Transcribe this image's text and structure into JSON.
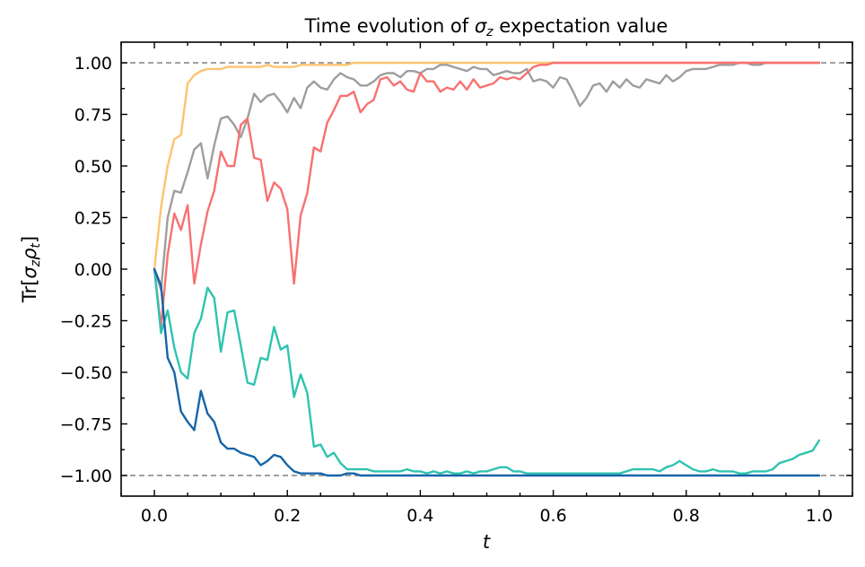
{
  "chart_data": {
    "type": "line",
    "title": "Time evolution of σ_z expectation value",
    "title_parts": {
      "prefix": "Time evolution of ",
      "symbol": "σ",
      "subscript": "z",
      "suffix": " expectation value"
    },
    "xlabel": "t",
    "ylabel": "Tr[σ_z ρ_t]",
    "ylabel_parts": {
      "a": "Tr[",
      "s1": "σ",
      "sub1": "z",
      "s2": "ρ",
      "sub2": "t",
      "b": "]"
    },
    "xlim": [
      -0.05,
      1.05
    ],
    "ylim": [
      -1.1,
      1.1
    ],
    "xticks": [
      0.0,
      0.2,
      0.4,
      0.6,
      0.8,
      1.0
    ],
    "xtick_labels": [
      "0.0",
      "0.2",
      "0.4",
      "0.6",
      "0.8",
      "1.0"
    ],
    "yticks": [
      1.0,
      0.75,
      0.5,
      0.25,
      0.0,
      -0.25,
      -0.5,
      -0.75,
      -1.0
    ],
    "ytick_labels": [
      "1.00",
      "0.75",
      "0.50",
      "0.25",
      "0.00",
      "−0.25",
      "−0.50",
      "−0.75",
      "−1.00"
    ],
    "reference_lines": [
      1.0,
      -1.0
    ],
    "reference_color": "#808080",
    "grid": false,
    "legend": false,
    "x": [
      0.0,
      0.01,
      0.02,
      0.03,
      0.04,
      0.05,
      0.06,
      0.07,
      0.08,
      0.09,
      0.1,
      0.11,
      0.12,
      0.13,
      0.14,
      0.15,
      0.16,
      0.17,
      0.18,
      0.19,
      0.2,
      0.21,
      0.22,
      0.23,
      0.24,
      0.25,
      0.26,
      0.27,
      0.28,
      0.29,
      0.3,
      0.31,
      0.32,
      0.33,
      0.34,
      0.35,
      0.36,
      0.37,
      0.38,
      0.39,
      0.4,
      0.41,
      0.42,
      0.43,
      0.44,
      0.45,
      0.46,
      0.47,
      0.48,
      0.49,
      0.5,
      0.51,
      0.52,
      0.53,
      0.54,
      0.55,
      0.56,
      0.57,
      0.58,
      0.59,
      0.6,
      0.61,
      0.62,
      0.63,
      0.64,
      0.65,
      0.66,
      0.67,
      0.68,
      0.69,
      0.7,
      0.71,
      0.72,
      0.73,
      0.74,
      0.75,
      0.76,
      0.77,
      0.78,
      0.79,
      0.8,
      0.81,
      0.82,
      0.83,
      0.84,
      0.85,
      0.86,
      0.87,
      0.88,
      0.89,
      0.9,
      0.91,
      0.92,
      0.93,
      0.94,
      0.95,
      0.96,
      0.97,
      0.98,
      0.99,
      1.0
    ],
    "series": [
      {
        "color": "#fdc46f",
        "values": [
          0.0,
          0.3,
          0.5,
          0.63,
          0.65,
          0.9,
          0.94,
          0.96,
          0.97,
          0.97,
          0.97,
          0.98,
          0.98,
          0.98,
          0.98,
          0.98,
          0.98,
          0.99,
          0.98,
          0.98,
          0.98,
          0.98,
          0.99,
          0.99,
          0.99,
          0.99,
          0.99,
          0.99,
          0.99,
          0.99,
          1.0,
          1.0,
          1.0,
          1.0,
          1.0,
          1.0,
          1.0,
          1.0,
          1.0,
          1.0,
          1.0,
          1.0,
          1.0,
          1.0,
          1.0,
          1.0,
          1.0,
          1.0,
          1.0,
          1.0,
          1.0,
          1.0,
          1.0,
          1.0,
          1.0,
          1.0,
          1.0,
          1.0,
          1.0,
          1.0,
          1.0,
          1.0,
          1.0,
          1.0,
          1.0,
          1.0,
          1.0,
          1.0,
          1.0,
          1.0,
          1.0,
          1.0,
          1.0,
          1.0,
          1.0,
          1.0,
          1.0,
          1.0,
          1.0,
          1.0,
          1.0,
          1.0,
          1.0,
          1.0,
          1.0,
          1.0,
          1.0,
          1.0,
          1.0,
          1.0,
          1.0,
          1.0,
          1.0,
          1.0,
          1.0,
          1.0,
          1.0,
          1.0,
          1.0,
          1.0,
          1.0
        ]
      },
      {
        "color": "#9e9e9e",
        "values": [
          0.0,
          -0.1,
          0.25,
          0.38,
          0.37,
          0.47,
          0.58,
          0.61,
          0.44,
          0.6,
          0.73,
          0.74,
          0.7,
          0.64,
          0.73,
          0.85,
          0.81,
          0.84,
          0.85,
          0.81,
          0.76,
          0.83,
          0.78,
          0.88,
          0.91,
          0.88,
          0.87,
          0.92,
          0.95,
          0.93,
          0.92,
          0.89,
          0.89,
          0.91,
          0.94,
          0.95,
          0.95,
          0.93,
          0.96,
          0.96,
          0.95,
          0.97,
          0.97,
          0.99,
          0.99,
          0.98,
          0.97,
          0.96,
          0.98,
          0.97,
          0.97,
          0.94,
          0.95,
          0.96,
          0.95,
          0.95,
          0.97,
          0.91,
          0.92,
          0.91,
          0.88,
          0.93,
          0.92,
          0.86,
          0.79,
          0.83,
          0.89,
          0.9,
          0.86,
          0.91,
          0.88,
          0.92,
          0.89,
          0.88,
          0.92,
          0.91,
          0.9,
          0.94,
          0.91,
          0.93,
          0.96,
          0.97,
          0.97,
          0.97,
          0.98,
          0.99,
          0.99,
          0.99,
          1.0,
          1.0,
          0.99,
          0.99,
          1.0,
          1.0,
          1.0,
          1.0,
          1.0,
          1.0,
          1.0,
          1.0,
          1.0
        ]
      },
      {
        "color": "#f87171",
        "values": [
          0.0,
          -0.28,
          0.07,
          0.27,
          0.19,
          0.31,
          -0.07,
          0.12,
          0.28,
          0.38,
          0.57,
          0.5,
          0.5,
          0.7,
          0.73,
          0.54,
          0.53,
          0.33,
          0.42,
          0.39,
          0.29,
          -0.07,
          0.26,
          0.37,
          0.59,
          0.57,
          0.71,
          0.77,
          0.84,
          0.84,
          0.86,
          0.76,
          0.8,
          0.82,
          0.92,
          0.93,
          0.89,
          0.91,
          0.87,
          0.86,
          0.95,
          0.91,
          0.91,
          0.86,
          0.88,
          0.87,
          0.91,
          0.87,
          0.92,
          0.88,
          0.89,
          0.9,
          0.93,
          0.92,
          0.93,
          0.92,
          0.95,
          0.98,
          0.99,
          0.99,
          1.0,
          1.0,
          1.0,
          1.0,
          1.0,
          1.0,
          1.0,
          1.0,
          1.0,
          1.0,
          1.0,
          1.0,
          1.0,
          1.0,
          1.0,
          1.0,
          1.0,
          1.0,
          1.0,
          1.0,
          1.0,
          1.0,
          1.0,
          1.0,
          1.0,
          1.0,
          1.0,
          1.0,
          1.0,
          1.0,
          1.0,
          1.0,
          1.0,
          1.0,
          1.0,
          1.0,
          1.0,
          1.0,
          1.0,
          1.0,
          1.0
        ]
      },
      {
        "color": "#2ec4b0",
        "values": [
          0.0,
          -0.31,
          -0.2,
          -0.38,
          -0.5,
          -0.53,
          -0.31,
          -0.24,
          -0.09,
          -0.14,
          -0.4,
          -0.21,
          -0.2,
          -0.37,
          -0.55,
          -0.56,
          -0.43,
          -0.44,
          -0.28,
          -0.39,
          -0.37,
          -0.62,
          -0.51,
          -0.6,
          -0.86,
          -0.85,
          -0.91,
          -0.89,
          -0.94,
          -0.97,
          -0.97,
          -0.97,
          -0.97,
          -0.98,
          -0.98,
          -0.98,
          -0.98,
          -0.98,
          -0.97,
          -0.98,
          -0.98,
          -0.99,
          -0.98,
          -0.99,
          -0.98,
          -0.99,
          -0.99,
          -0.98,
          -0.99,
          -0.98,
          -0.98,
          -0.97,
          -0.96,
          -0.96,
          -0.98,
          -0.98,
          -0.99,
          -0.99,
          -0.99,
          -0.99,
          -0.99,
          -0.99,
          -0.99,
          -0.99,
          -0.99,
          -0.99,
          -0.99,
          -0.99,
          -0.99,
          -0.99,
          -0.99,
          -0.98,
          -0.97,
          -0.97,
          -0.97,
          -0.97,
          -0.98,
          -0.96,
          -0.95,
          -0.93,
          -0.95,
          -0.97,
          -0.98,
          -0.98,
          -0.97,
          -0.98,
          -0.98,
          -0.98,
          -0.99,
          -0.99,
          -0.98,
          -0.98,
          -0.98,
          -0.97,
          -0.94,
          -0.93,
          -0.92,
          -0.9,
          -0.89,
          -0.88,
          -0.83
        ]
      },
      {
        "color": "#1565a7",
        "values": [
          0.0,
          -0.08,
          -0.43,
          -0.5,
          -0.69,
          -0.74,
          -0.78,
          -0.59,
          -0.7,
          -0.74,
          -0.84,
          -0.87,
          -0.87,
          -0.89,
          -0.9,
          -0.91,
          -0.95,
          -0.93,
          -0.9,
          -0.91,
          -0.95,
          -0.98,
          -0.99,
          -0.99,
          -0.99,
          -0.99,
          -1.0,
          -1.0,
          -1.0,
          -0.99,
          -0.99,
          -1.0,
          -1.0,
          -1.0,
          -1.0,
          -1.0,
          -1.0,
          -1.0,
          -1.0,
          -1.0,
          -1.0,
          -1.0,
          -1.0,
          -1.0,
          -1.0,
          -1.0,
          -1.0,
          -1.0,
          -1.0,
          -1.0,
          -1.0,
          -1.0,
          -1.0,
          -1.0,
          -1.0,
          -1.0,
          -1.0,
          -1.0,
          -1.0,
          -1.0,
          -1.0,
          -1.0,
          -1.0,
          -1.0,
          -1.0,
          -1.0,
          -1.0,
          -1.0,
          -1.0,
          -1.0,
          -1.0,
          -1.0,
          -1.0,
          -1.0,
          -1.0,
          -1.0,
          -1.0,
          -1.0,
          -1.0,
          -1.0,
          -1.0,
          -1.0,
          -1.0,
          -1.0,
          -1.0,
          -1.0,
          -1.0,
          -1.0,
          -1.0,
          -1.0,
          -1.0,
          -1.0,
          -1.0,
          -1.0,
          -1.0,
          -1.0,
          -1.0,
          -1.0,
          -1.0,
          -1.0,
          -1.0
        ]
      }
    ]
  }
}
